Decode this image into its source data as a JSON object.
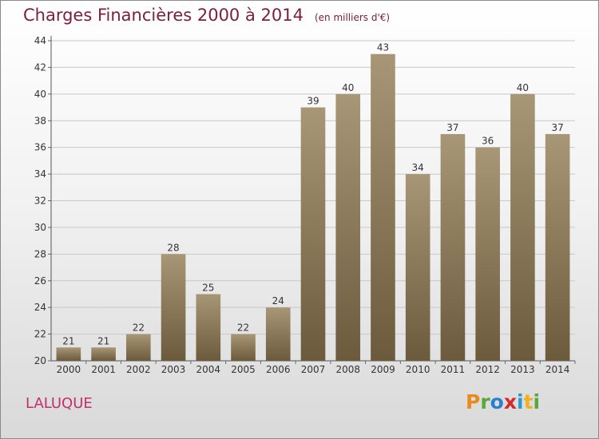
{
  "header": {
    "title": "Charges Financières 2000 à 2014",
    "subtitle": "(en milliers d'€)"
  },
  "footer": {
    "commune": "LALUQUE",
    "logo_text": "Proxiti"
  },
  "colors": {
    "bar_top": "#a89776",
    "bar_bottom": "#6b5a3c",
    "title": "#7a2040",
    "commune": "#c0306a",
    "grid": "#c8c8c8"
  },
  "chart_data": {
    "type": "bar",
    "title": "Charges Financières 2000 à 2014",
    "subtitle": "(en milliers d'€)",
    "categories": [
      "2000",
      "2001",
      "2002",
      "2003",
      "2004",
      "2005",
      "2006",
      "2007",
      "2008",
      "2009",
      "2010",
      "2011",
      "2012",
      "2013",
      "2014"
    ],
    "values": [
      21,
      21,
      22,
      28,
      25,
      22,
      24,
      39,
      40,
      43,
      34,
      37,
      36,
      40,
      37
    ],
    "ylim": [
      20,
      44
    ],
    "yticks": [
      20,
      22,
      24,
      26,
      28,
      30,
      32,
      34,
      36,
      38,
      40,
      42,
      44
    ],
    "grid": true,
    "xlabel": "",
    "ylabel": ""
  }
}
